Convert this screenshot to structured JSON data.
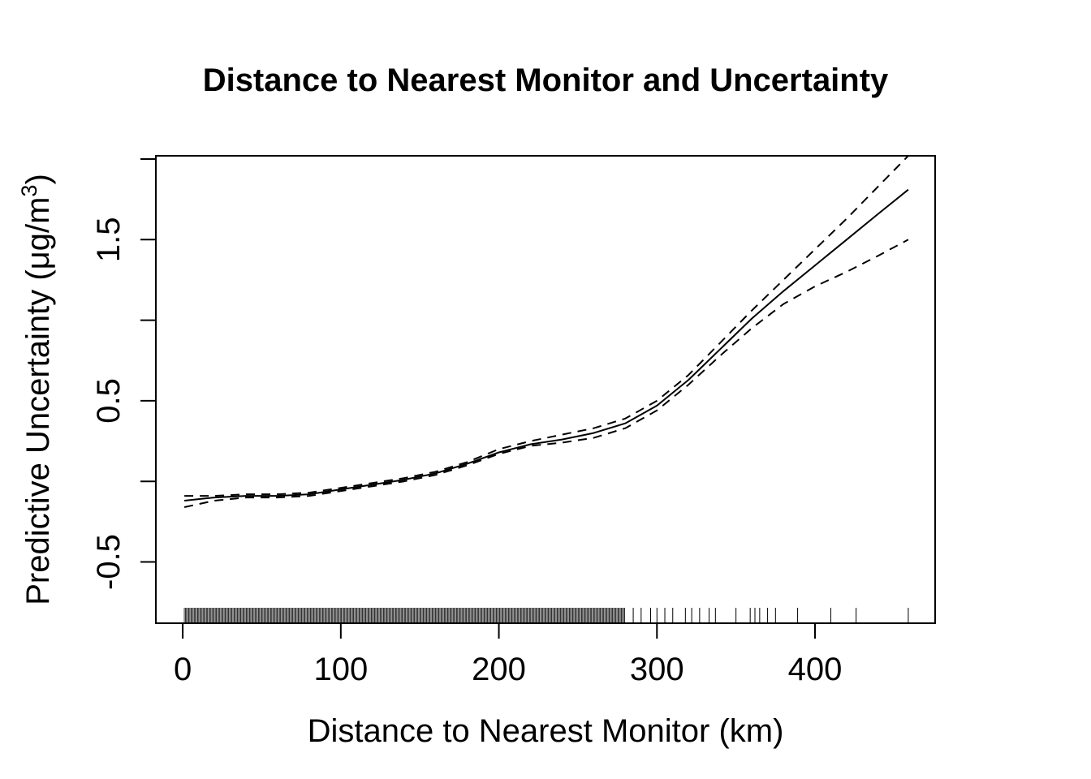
{
  "chart_data": {
    "type": "line",
    "title": "Distance to Nearest Monitor and Uncertainty",
    "xlabel": "Distance to Nearest Monitor (km)",
    "ylabel_main": "Predictive Uncertainty (",
    "ylabel_mu": "μ",
    "ylabel_unit": "g/m",
    "ylabel_sup": "3",
    "ylabel_close": ")",
    "xlim": [
      -17,
      476
    ],
    "ylim": [
      -0.88,
      2.02
    ],
    "x_ticks": [
      0,
      100,
      200,
      300,
      400
    ],
    "x_tick_labels": [
      "0",
      "100",
      "200",
      "300",
      "400"
    ],
    "y_ticks": [
      -0.5,
      0,
      0.5,
      1,
      1.5,
      2
    ],
    "y_tick_labels": [
      "-0.5",
      "",
      "0.5",
      "",
      "1.5",
      ""
    ],
    "series": [
      {
        "role": "fit",
        "style": "solid",
        "x": [
          1,
          20,
          40,
          60,
          80,
          100,
          120,
          140,
          160,
          180,
          200,
          220,
          240,
          260,
          280,
          300,
          320,
          340,
          360,
          380,
          400,
          420,
          440,
          459
        ],
        "y": [
          -0.12,
          -0.1,
          -0.09,
          -0.09,
          -0.08,
          -0.05,
          -0.02,
          0.01,
          0.05,
          0.11,
          0.18,
          0.23,
          0.26,
          0.3,
          0.36,
          0.47,
          0.63,
          0.82,
          1.01,
          1.18,
          1.34,
          1.5,
          1.66,
          1.81
        ]
      },
      {
        "role": "upper",
        "style": "dashed",
        "x": [
          1,
          20,
          40,
          60,
          80,
          100,
          120,
          140,
          160,
          180,
          200,
          220,
          240,
          260,
          280,
          300,
          320,
          340,
          360,
          380,
          400,
          420,
          440,
          459
        ],
        "y": [
          -0.09,
          -0.09,
          -0.08,
          -0.08,
          -0.07,
          -0.04,
          -0.01,
          0.02,
          0.06,
          0.12,
          0.2,
          0.25,
          0.29,
          0.33,
          0.39,
          0.5,
          0.66,
          0.86,
          1.06,
          1.25,
          1.44,
          1.63,
          1.83,
          2.02
        ]
      },
      {
        "role": "lower",
        "style": "dashed",
        "x": [
          1,
          20,
          40,
          60,
          80,
          100,
          120,
          140,
          160,
          180,
          200,
          220,
          240,
          260,
          280,
          300,
          320,
          340,
          360,
          380,
          400,
          420,
          440,
          459
        ],
        "y": [
          -0.16,
          -0.12,
          -0.1,
          -0.1,
          -0.09,
          -0.06,
          -0.03,
          0.0,
          0.04,
          0.1,
          0.17,
          0.22,
          0.24,
          0.27,
          0.33,
          0.44,
          0.6,
          0.78,
          0.95,
          1.1,
          1.21,
          1.3,
          1.4,
          1.5
        ]
      }
    ],
    "rug_dense_from": 1,
    "rug_dense_to": 280,
    "rug_sparse": [
      285,
      290,
      296,
      300,
      305,
      310,
      318,
      322,
      327,
      333,
      337,
      350,
      359,
      362,
      365,
      370,
      375,
      389,
      410,
      426,
      459
    ],
    "line_color": "#000000",
    "grid": false,
    "legend": "none"
  }
}
